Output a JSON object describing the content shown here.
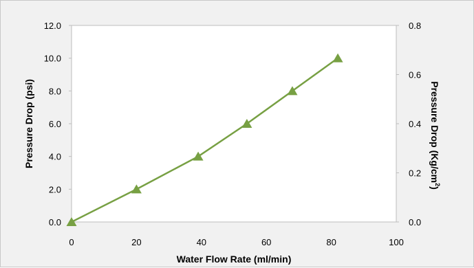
{
  "chart_data": {
    "type": "line",
    "xlabel": "Water Flow Rate (ml/min)",
    "ylabel": "Pressure Drop  (psi)",
    "y2label": "Pressure Drop (Kg/cm",
    "y2label_sup": "2",
    "y2label_close": ")",
    "xlim": [
      0,
      100
    ],
    "ylim": [
      0,
      12
    ],
    "y2lim": [
      0,
      0.8
    ],
    "x_ticks": [
      "0",
      "20",
      "40",
      "60",
      "80",
      "100"
    ],
    "y_ticks": [
      "0.0",
      "2.0",
      "4.0",
      "6.0",
      "8.0",
      "10.0",
      "12.0"
    ],
    "y2_ticks": [
      "0.0",
      "0.2",
      "0.4",
      "0.6",
      "0.8"
    ],
    "series": [
      {
        "color": "#77a043",
        "marker": "triangle",
        "x": [
          0,
          20,
          39,
          54,
          68,
          82
        ],
        "y": [
          0,
          2,
          4,
          6,
          8,
          10
        ]
      }
    ],
    "grid": false,
    "legend": "none"
  }
}
